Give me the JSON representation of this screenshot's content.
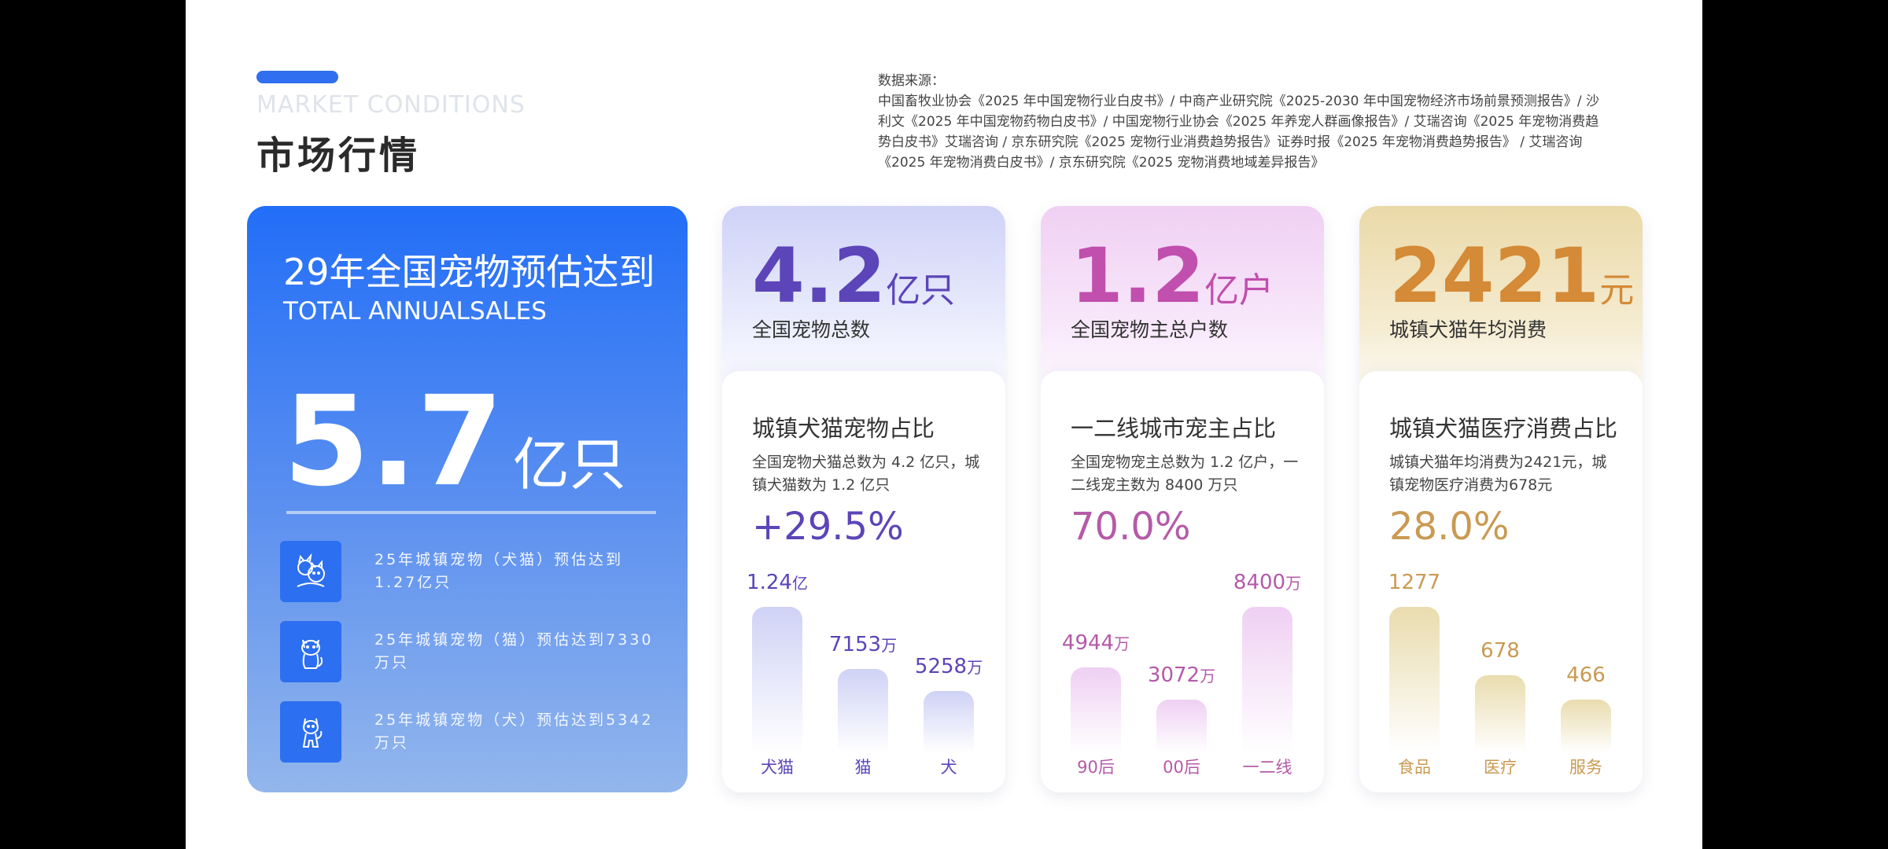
{
  "header": {
    "subtitle_en": "MARKET CONDITIONS",
    "title": "市场行情",
    "sources_label": "数据来源：",
    "sources_text": "中国畜牧业协会《2025 年中国宠物行业白皮书》/ 中商产业研究院《2025-2030 年中国宠物经济市场前景预测报告》/ 沙利文《2025 年中国宠物药物白皮书》/ 中国宠物行业协会《2025 年养宠人群画像报告》/ 艾瑞咨询《2025 年宠物消费趋势白皮书》艾瑞咨询 / 京东研究院《2025 宠物行业消费趋势报告》证券时报《2025 年宠物消费趋势报告》 / 艾瑞咨询《2025 年宠物消费白皮书》/ 京东研究院《2025 宠物消费地域差异报告》"
  },
  "summary_card": {
    "title": "29年全国宠物预估达到",
    "subtitle": "TOTAL ANNUALSALES",
    "big_number": "5.7",
    "big_unit": "亿只",
    "items": [
      {
        "icon": "cat-dog-icon",
        "text": "25年城镇宠物（犬猫）预估达到1.27亿只"
      },
      {
        "icon": "cat-icon",
        "text": "25年城镇宠物（猫）预估达到7330万只"
      },
      {
        "icon": "dog-icon",
        "text": "25年城镇宠物（犬）预估达到5342万只"
      }
    ]
  },
  "cards": [
    {
      "big_number": "4.2",
      "big_unit": "亿只",
      "big_label": "全国宠物总数",
      "chart_title": "城镇犬猫宠物占比",
      "description": "全国宠物犬猫总数为 4.2 亿只，城镇犬猫数为 1.2 亿只",
      "percent": "+29.5%",
      "accent": "#5b45b8",
      "chart_data": {
        "type": "bar",
        "categories": [
          "犬猫",
          "猫",
          "犬"
        ],
        "values": [
          12400,
          7153,
          5258
        ],
        "value_labels": [
          {
            "num": "1.24",
            "unit": "亿"
          },
          {
            "num": "7153",
            "unit": "万"
          },
          {
            "num": "5258",
            "unit": "万"
          }
        ]
      }
    },
    {
      "big_number": "1.2",
      "big_unit": "亿户",
      "big_label": "全国宠物主总户数",
      "chart_title": "一二线城市宠主占比",
      "description": "全国宠物宠主总数为 1.2 亿户，一二线宠主数为 8400 万只",
      "percent": "70.0%",
      "accent": "#c04fae",
      "chart_data": {
        "type": "bar",
        "categories": [
          "90后",
          "00后",
          "一二线"
        ],
        "values": [
          4944,
          3072,
          8400
        ],
        "value_labels": [
          {
            "num": "4944",
            "unit": "万"
          },
          {
            "num": "3072",
            "unit": "万"
          },
          {
            "num": "8400",
            "unit": "万"
          }
        ]
      }
    },
    {
      "big_number": "2421",
      "big_unit": "元",
      "big_label": "城镇犬猫年均消费",
      "chart_title": "城镇犬猫医疗消费占比",
      "description": "城镇犬猫年均消费为2421元，城镇宠物医疗消费为678元",
      "percent": "28.0%",
      "accent": "#d48a36",
      "chart_data": {
        "type": "bar",
        "categories": [
          "食品",
          "医疗",
          "服务"
        ],
        "values": [
          1277,
          678,
          466
        ],
        "value_labels": [
          {
            "num": "1277",
            "unit": ""
          },
          {
            "num": "678",
            "unit": ""
          },
          {
            "num": "466",
            "unit": ""
          }
        ]
      }
    }
  ]
}
